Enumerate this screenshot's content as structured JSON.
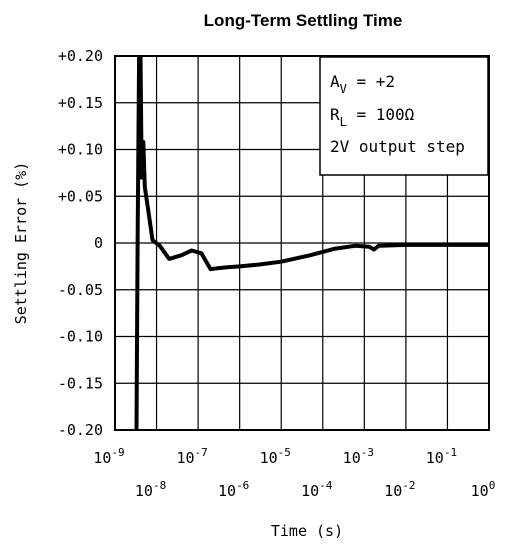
{
  "chart_data": {
    "type": "line",
    "title": "Long-Term Settling Time",
    "xlabel": "Time (s)",
    "ylabel": "Settling Error (%)",
    "x_scale": "log",
    "xlim": [
      1e-09,
      1
    ],
    "ylim": [
      -0.2,
      0.2
    ],
    "grid": true,
    "y_ticks": [
      {
        "value": 0.2,
        "label": "+0.20"
      },
      {
        "value": 0.15,
        "label": "+0.15"
      },
      {
        "value": 0.1,
        "label": "+0.10"
      },
      {
        "value": 0.05,
        "label": "+0.05"
      },
      {
        "value": 0.0,
        "label": "0"
      },
      {
        "value": -0.05,
        "label": "-0.05"
      },
      {
        "value": -0.1,
        "label": "-0.10"
      },
      {
        "value": -0.15,
        "label": "-0.15"
      },
      {
        "value": -0.2,
        "label": "-0.20"
      }
    ],
    "x_ticks_upper": [
      {
        "value": 1e-09,
        "base": "10",
        "exp": "-9"
      },
      {
        "value": 1e-07,
        "base": "10",
        "exp": "-7"
      },
      {
        "value": 1e-05,
        "base": "10",
        "exp": "-5"
      },
      {
        "value": 0.001,
        "base": "10",
        "exp": "-3"
      },
      {
        "value": 0.1,
        "base": "10",
        "exp": "-1"
      }
    ],
    "x_ticks_lower": [
      {
        "value": 1e-08,
        "base": "10",
        "exp": "-8"
      },
      {
        "value": 1e-06,
        "base": "10",
        "exp": "-6"
      },
      {
        "value": 0.0001,
        "base": "10",
        "exp": "-4"
      },
      {
        "value": 0.01,
        "base": "10",
        "exp": "-2"
      },
      {
        "value": 1,
        "base": "10",
        "exp": "0"
      }
    ],
    "annotations": [
      {
        "main": "A",
        "sub": "V",
        "rest": " = +2"
      },
      {
        "main": "R",
        "sub": "L",
        "rest": " = 100Ω"
      },
      {
        "main": "2V output step",
        "sub": "",
        "rest": ""
      }
    ],
    "series": [
      {
        "x": [
          3.3e-09,
          3.5e-09,
          3.8e-09,
          4.1e-09,
          4.4e-09,
          4.8e-09,
          5.2e-09,
          6e-09,
          8e-09,
          1.2e-08,
          2e-08,
          4e-08,
          7e-08,
          1.2e-07,
          2e-07,
          3e-07,
          5e-07,
          1e-06,
          3e-06,
          1e-05,
          5e-05,
          0.0002,
          0.0006,
          0.0013,
          0.0017,
          0.0022,
          0.01,
          0.1,
          1
        ],
        "y": [
          -0.2,
          0.0,
          0.2,
          0.2,
          0.07,
          0.108,
          0.06,
          0.042,
          0.003,
          -0.003,
          -0.017,
          -0.013,
          -0.008,
          -0.011,
          -0.028,
          -0.027,
          -0.026,
          -0.025,
          -0.023,
          -0.02,
          -0.013,
          -0.006,
          -0.003,
          -0.004,
          -0.007,
          -0.003,
          -0.002,
          -0.002,
          -0.002
        ]
      }
    ]
  }
}
